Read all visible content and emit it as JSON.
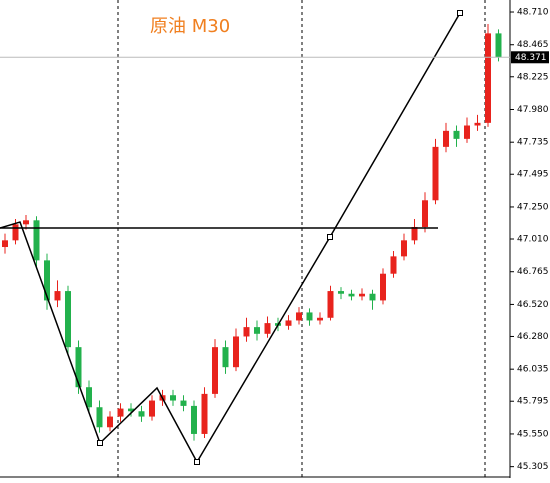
{
  "chart_data": {
    "type": "candlestick",
    "title": "原油 M30",
    "up_color": "#e8231d",
    "down_color": "#22b14c",
    "ylim": [
      45.22,
      48.8
    ],
    "yticks": [
      {
        "value": 48.71,
        "label": "48.710"
      },
      48.465,
      48.225,
      {
        "value": 47.98,
        "label": "47.980"
      },
      47.735,
      47.495,
      {
        "value": 47.25,
        "label": "47.250"
      },
      {
        "value": 47.01,
        "label": "47.010"
      },
      46.765,
      {
        "value": 46.52,
        "label": "46.520"
      },
      {
        "value": 46.28,
        "label": "46.280"
      },
      46.035,
      45.795,
      {
        "value": 45.55,
        "label": "45.550"
      },
      45.305
    ],
    "last_price": 48.371,
    "open": [
      46.95,
      47.0,
      47.12,
      47.15,
      46.85,
      46.55,
      46.62,
      46.2,
      45.9,
      45.75,
      45.6,
      45.68,
      45.74,
      45.72,
      45.68,
      45.8,
      45.84,
      45.8,
      45.76,
      45.55,
      45.85,
      46.2,
      46.05,
      46.28,
      46.35,
      46.3,
      46.38,
      46.36,
      46.4,
      46.46,
      46.4,
      46.42,
      46.62,
      46.6,
      46.58,
      46.6,
      46.55,
      46.75,
      46.88,
      47.0,
      47.1,
      47.3,
      47.7,
      47.82,
      47.76,
      47.86,
      47.88,
      48.55
    ],
    "close": [
      47.0,
      47.12,
      47.15,
      46.85,
      46.55,
      46.62,
      46.2,
      45.9,
      45.75,
      45.6,
      45.68,
      45.74,
      45.72,
      45.68,
      45.8,
      45.84,
      45.8,
      45.76,
      45.55,
      45.85,
      46.2,
      46.05,
      46.28,
      46.35,
      46.3,
      46.38,
      46.36,
      46.4,
      46.46,
      46.4,
      46.42,
      46.62,
      46.6,
      46.58,
      46.6,
      46.55,
      46.75,
      46.88,
      47.0,
      47.1,
      47.3,
      47.7,
      47.82,
      47.76,
      47.86,
      47.88,
      48.55,
      48.37
    ],
    "high": [
      47.05,
      47.16,
      47.19,
      47.18,
      46.9,
      46.7,
      46.66,
      46.25,
      45.95,
      45.8,
      45.72,
      45.78,
      45.78,
      45.76,
      45.84,
      45.88,
      45.88,
      45.84,
      45.8,
      45.9,
      46.26,
      46.25,
      46.34,
      46.42,
      46.4,
      46.43,
      46.42,
      46.44,
      46.5,
      46.49,
      46.46,
      46.66,
      46.65,
      46.63,
      46.64,
      46.63,
      46.79,
      46.92,
      47.05,
      47.16,
      47.36,
      47.76,
      47.88,
      47.86,
      47.92,
      47.94,
      48.62,
      48.58
    ],
    "low": [
      46.9,
      46.97,
      47.08,
      46.8,
      46.48,
      46.5,
      46.15,
      45.85,
      45.7,
      45.56,
      45.57,
      45.64,
      45.68,
      45.64,
      45.65,
      45.76,
      45.76,
      45.72,
      45.5,
      45.52,
      45.82,
      46.0,
      46.02,
      46.24,
      46.25,
      46.27,
      46.32,
      46.33,
      46.37,
      46.36,
      46.37,
      46.4,
      46.56,
      46.55,
      46.55,
      46.48,
      46.52,
      46.72,
      46.85,
      46.97,
      47.06,
      47.27,
      47.66,
      47.7,
      47.73,
      47.82,
      47.85,
      48.34
    ]
  }
}
